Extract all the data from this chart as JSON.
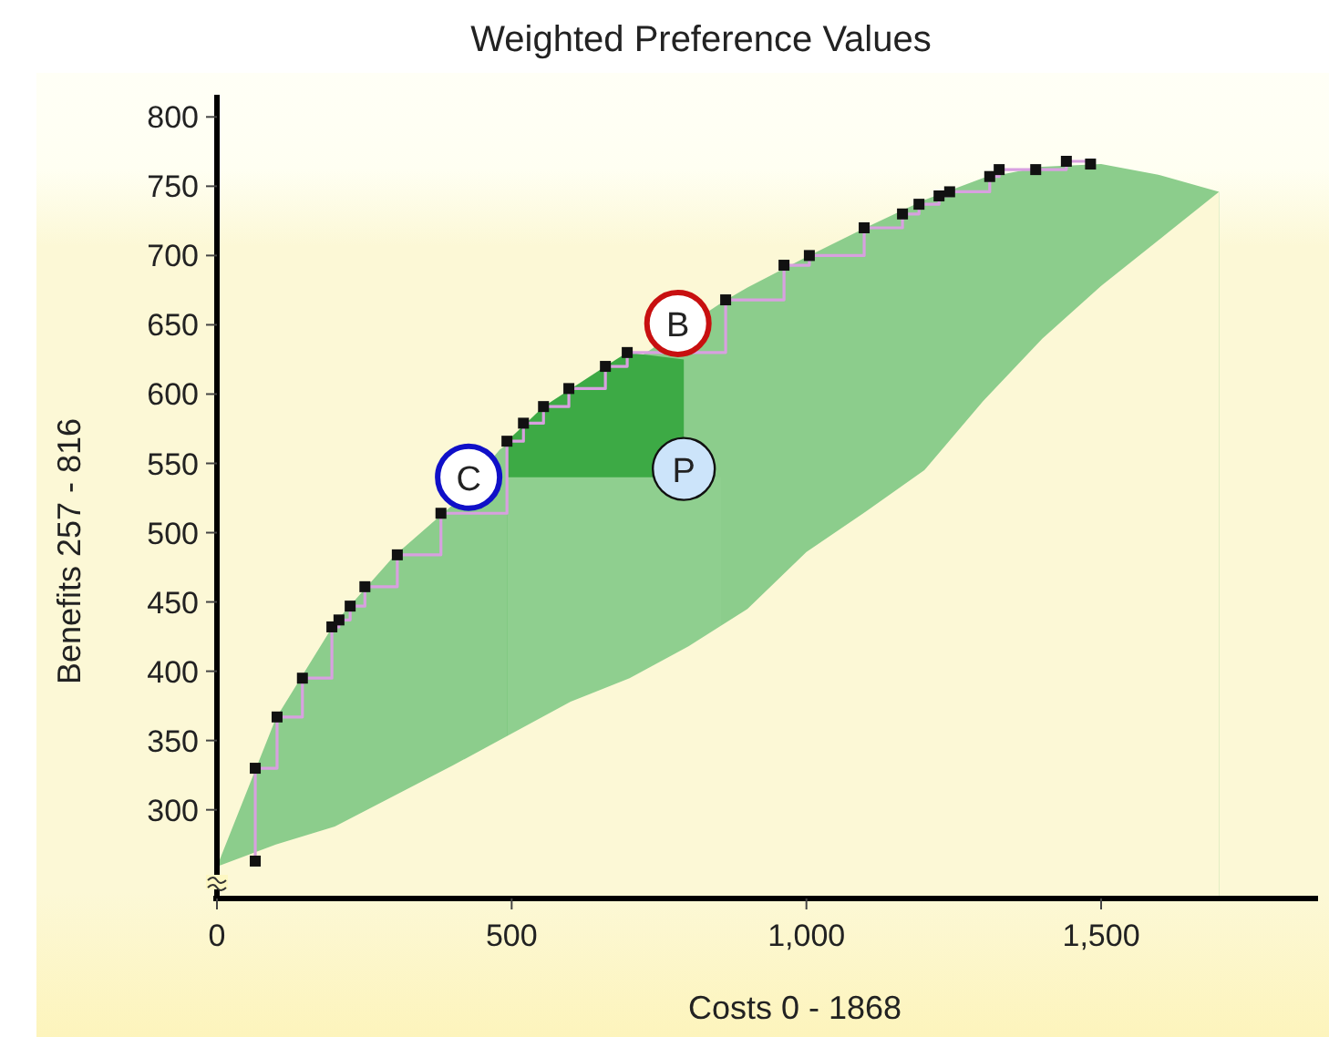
{
  "chart_data": {
    "type": "step",
    "title": "Weighted Preference Values",
    "xlabel": "Costs 0 - 1868",
    "ylabel": "Benefits 257 - 816",
    "xlim": [
      0,
      1868
    ],
    "ylim": [
      236,
      816
    ],
    "xticks": [
      0,
      500,
      {
        "value": 1000,
        "label": "1,000"
      },
      {
        "value": 1500,
        "label": "1,500"
      }
    ],
    "yticks": [
      300,
      350,
      400,
      450,
      500,
      550,
      600,
      650,
      700,
      750,
      800
    ],
    "grid": false,
    "legend": false,
    "series": [
      {
        "type": "area",
        "color": "#8ccd8c",
        "x": [
          0,
          100,
          200,
          300,
          400,
          480,
          860,
          900,
          1000,
          1100,
          1200,
          1300,
          1400,
          1500,
          1600,
          1700
        ],
        "values": [
          259,
          366,
          435,
          483,
          520,
          560,
          667,
          677,
          699,
          720,
          740,
          756,
          764,
          766,
          758,
          746
        ]
      },
      {
        "type": "area",
        "color": "#3daa45",
        "x": [
          492,
          554,
          659,
          696,
          792
        ],
        "values": [
          566,
          591,
          620,
          630,
          625
        ]
      },
      {
        "type": "area",
        "color": "#8fcf8f",
        "x": [
          492,
          855
        ],
        "values": [
          540,
          540
        ]
      },
      {
        "type": "area",
        "color": "#fcf8d6",
        "x": [
          0,
          100,
          200,
          300,
          400,
          500,
          600,
          700,
          800,
          900,
          1000,
          1100,
          1200,
          1300,
          1400,
          1500,
          1600,
          1700
        ],
        "values": [
          259,
          275,
          288,
          310,
          332,
          355,
          378,
          395,
          418,
          445,
          486,
          515,
          545,
          595,
          640,
          678,
          712,
          746
        ]
      },
      {
        "color": "#d8a0e0",
        "marker": "square",
        "x": [
          65,
          65,
          102,
          145,
          195,
          207,
          226,
          251,
          306,
          380,
          492,
          520,
          554,
          597,
          659,
          696,
          863,
          962,
          1005,
          1098,
          1163,
          1191,
          1225,
          1243,
          1311,
          1327,
          1389,
          1441,
          1482
        ],
        "values": [
          263,
          330,
          367,
          395,
          432,
          437,
          447,
          461,
          484,
          514,
          566,
          579,
          591,
          604,
          620,
          630,
          668,
          693,
          700,
          720,
          730,
          737,
          743,
          746,
          757,
          762,
          762,
          768,
          766
        ]
      }
    ],
    "annotations": [
      {
        "text": "C",
        "x": 427,
        "y": 540
      },
      {
        "text": "B",
        "x": 782,
        "y": 651
      },
      {
        "text": "P",
        "x": 792,
        "y": 546
      }
    ]
  }
}
